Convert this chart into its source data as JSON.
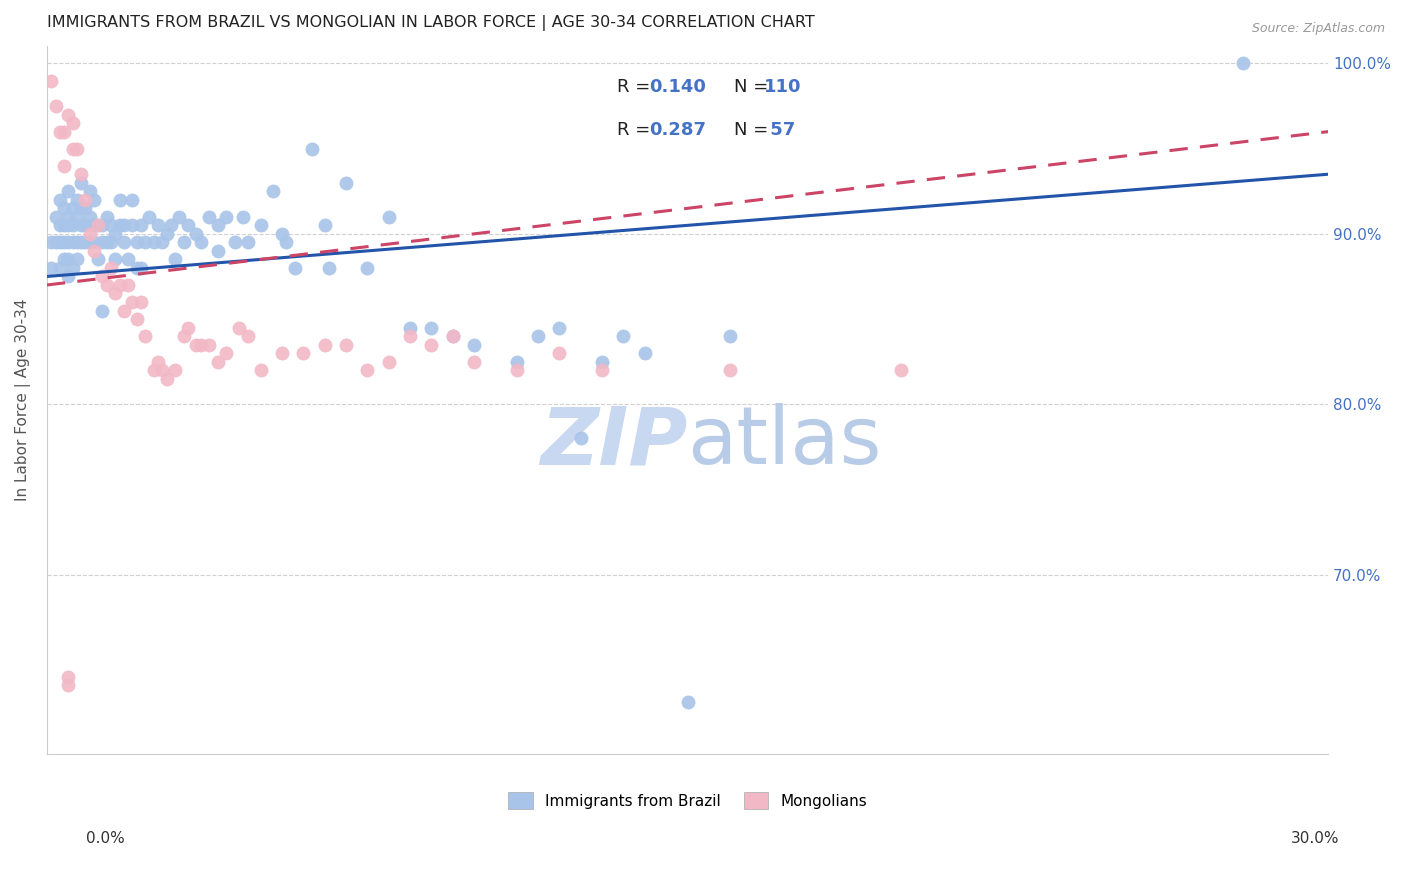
{
  "title": "IMMIGRANTS FROM BRAZIL VS MONGOLIAN IN LABOR FORCE | AGE 30-34 CORRELATION CHART",
  "source": "Source: ZipAtlas.com",
  "ylabel": "In Labor Force | Age 30-34",
  "bottom_legend_brazil": "Immigrants from Brazil",
  "bottom_legend_mongolia": "Mongolians",
  "brazil_color": "#a8c4e8",
  "brazil_edge_color": "#a8c4e8",
  "mongolia_color": "#f2b8c6",
  "mongolia_edge_color": "#f2b8c6",
  "brazil_line_color": "#2255aa",
  "mongolia_line_color": "#cc4466",
  "R_brazil": "0.140",
  "N_brazil": "110",
  "R_mongolia": "0.287",
  "N_mongolia": " 57",
  "brazil_points": [
    [
      0.001,
      0.895
    ],
    [
      0.001,
      0.88
    ],
    [
      0.002,
      0.91
    ],
    [
      0.002,
      0.895
    ],
    [
      0.003,
      0.92
    ],
    [
      0.003,
      0.905
    ],
    [
      0.003,
      0.895
    ],
    [
      0.003,
      0.88
    ],
    [
      0.004,
      0.915
    ],
    [
      0.004,
      0.905
    ],
    [
      0.004,
      0.895
    ],
    [
      0.004,
      0.885
    ],
    [
      0.005,
      0.925
    ],
    [
      0.005,
      0.91
    ],
    [
      0.005,
      0.905
    ],
    [
      0.005,
      0.895
    ],
    [
      0.005,
      0.885
    ],
    [
      0.005,
      0.875
    ],
    [
      0.006,
      0.915
    ],
    [
      0.006,
      0.905
    ],
    [
      0.006,
      0.895
    ],
    [
      0.006,
      0.88
    ],
    [
      0.007,
      0.92
    ],
    [
      0.007,
      0.91
    ],
    [
      0.007,
      0.895
    ],
    [
      0.007,
      0.885
    ],
    [
      0.008,
      0.93
    ],
    [
      0.008,
      0.915
    ],
    [
      0.008,
      0.905
    ],
    [
      0.008,
      0.895
    ],
    [
      0.009,
      0.915
    ],
    [
      0.009,
      0.905
    ],
    [
      0.009,
      0.895
    ],
    [
      0.01,
      0.925
    ],
    [
      0.01,
      0.91
    ],
    [
      0.01,
      0.895
    ],
    [
      0.011,
      0.92
    ],
    [
      0.011,
      0.905
    ],
    [
      0.011,
      0.895
    ],
    [
      0.012,
      0.905
    ],
    [
      0.012,
      0.885
    ],
    [
      0.013,
      0.905
    ],
    [
      0.013,
      0.895
    ],
    [
      0.013,
      0.855
    ],
    [
      0.014,
      0.91
    ],
    [
      0.014,
      0.895
    ],
    [
      0.015,
      0.905
    ],
    [
      0.015,
      0.895
    ],
    [
      0.016,
      0.9
    ],
    [
      0.016,
      0.885
    ],
    [
      0.017,
      0.92
    ],
    [
      0.017,
      0.905
    ],
    [
      0.018,
      0.905
    ],
    [
      0.018,
      0.895
    ],
    [
      0.019,
      0.885
    ],
    [
      0.02,
      0.92
    ],
    [
      0.02,
      0.905
    ],
    [
      0.021,
      0.895
    ],
    [
      0.021,
      0.88
    ],
    [
      0.022,
      0.905
    ],
    [
      0.022,
      0.88
    ],
    [
      0.023,
      0.895
    ],
    [
      0.024,
      0.91
    ],
    [
      0.025,
      0.895
    ],
    [
      0.026,
      0.905
    ],
    [
      0.027,
      0.895
    ],
    [
      0.028,
      0.9
    ],
    [
      0.029,
      0.905
    ],
    [
      0.03,
      0.885
    ],
    [
      0.031,
      0.91
    ],
    [
      0.032,
      0.895
    ],
    [
      0.033,
      0.905
    ],
    [
      0.035,
      0.9
    ],
    [
      0.036,
      0.895
    ],
    [
      0.038,
      0.91
    ],
    [
      0.04,
      0.905
    ],
    [
      0.04,
      0.89
    ],
    [
      0.042,
      0.91
    ],
    [
      0.044,
      0.895
    ],
    [
      0.046,
      0.91
    ],
    [
      0.047,
      0.895
    ],
    [
      0.05,
      0.905
    ],
    [
      0.053,
      0.925
    ],
    [
      0.055,
      0.9
    ],
    [
      0.056,
      0.895
    ],
    [
      0.058,
      0.88
    ],
    [
      0.062,
      0.95
    ],
    [
      0.065,
      0.905
    ],
    [
      0.066,
      0.88
    ],
    [
      0.07,
      0.93
    ],
    [
      0.075,
      0.88
    ],
    [
      0.08,
      0.91
    ],
    [
      0.085,
      0.845
    ],
    [
      0.09,
      0.845
    ],
    [
      0.095,
      0.84
    ],
    [
      0.1,
      0.835
    ],
    [
      0.11,
      0.825
    ],
    [
      0.115,
      0.84
    ],
    [
      0.12,
      0.845
    ],
    [
      0.125,
      0.78
    ],
    [
      0.13,
      0.825
    ],
    [
      0.135,
      0.84
    ],
    [
      0.14,
      0.83
    ],
    [
      0.16,
      0.84
    ],
    [
      0.15,
      0.625
    ],
    [
      0.28,
      1.0
    ]
  ],
  "mongolia_points": [
    [
      0.001,
      0.99
    ],
    [
      0.002,
      0.975
    ],
    [
      0.003,
      0.96
    ],
    [
      0.004,
      0.94
    ],
    [
      0.004,
      0.96
    ],
    [
      0.005,
      0.97
    ],
    [
      0.006,
      0.95
    ],
    [
      0.006,
      0.965
    ],
    [
      0.007,
      0.95
    ],
    [
      0.008,
      0.935
    ],
    [
      0.009,
      0.92
    ],
    [
      0.01,
      0.9
    ],
    [
      0.011,
      0.89
    ],
    [
      0.012,
      0.905
    ],
    [
      0.013,
      0.875
    ],
    [
      0.014,
      0.87
    ],
    [
      0.015,
      0.88
    ],
    [
      0.016,
      0.865
    ],
    [
      0.017,
      0.87
    ],
    [
      0.018,
      0.855
    ],
    [
      0.019,
      0.87
    ],
    [
      0.02,
      0.86
    ],
    [
      0.021,
      0.85
    ],
    [
      0.022,
      0.86
    ],
    [
      0.023,
      0.84
    ],
    [
      0.025,
      0.82
    ],
    [
      0.026,
      0.825
    ],
    [
      0.027,
      0.82
    ],
    [
      0.028,
      0.815
    ],
    [
      0.03,
      0.82
    ],
    [
      0.032,
      0.84
    ],
    [
      0.033,
      0.845
    ],
    [
      0.035,
      0.835
    ],
    [
      0.036,
      0.835
    ],
    [
      0.038,
      0.835
    ],
    [
      0.04,
      0.825
    ],
    [
      0.042,
      0.83
    ],
    [
      0.045,
      0.845
    ],
    [
      0.047,
      0.84
    ],
    [
      0.05,
      0.82
    ],
    [
      0.055,
      0.83
    ],
    [
      0.06,
      0.83
    ],
    [
      0.065,
      0.835
    ],
    [
      0.07,
      0.835
    ],
    [
      0.075,
      0.82
    ],
    [
      0.08,
      0.825
    ],
    [
      0.085,
      0.84
    ],
    [
      0.09,
      0.835
    ],
    [
      0.095,
      0.84
    ],
    [
      0.1,
      0.825
    ],
    [
      0.11,
      0.82
    ],
    [
      0.12,
      0.83
    ],
    [
      0.13,
      0.82
    ],
    [
      0.16,
      0.82
    ],
    [
      0.2,
      0.82
    ],
    [
      0.005,
      0.635
    ],
    [
      0.005,
      0.64
    ]
  ],
  "brazil_trend": [
    0.0,
    0.3,
    0.875,
    0.935
  ],
  "mongolia_trend": [
    0.0,
    0.3,
    0.87,
    0.96
  ],
  "xlim": [
    0.0,
    0.3
  ],
  "ylim": [
    0.595,
    1.01
  ],
  "yticks": [
    0.7,
    0.8,
    0.9,
    1.0
  ],
  "yticklabels": [
    "70.0%",
    "80.0%",
    "90.0%",
    "100.0%"
  ],
  "background_color": "#ffffff",
  "grid_color": "#d0d0d0",
  "title_color": "#222222",
  "axis_color": "#555555",
  "right_tick_color": "#4472c4",
  "watermark_zip": "ZIP",
  "watermark_atlas": "atlas",
  "watermark_color": "#c8d8f0",
  "watermark_fontsize": 58
}
